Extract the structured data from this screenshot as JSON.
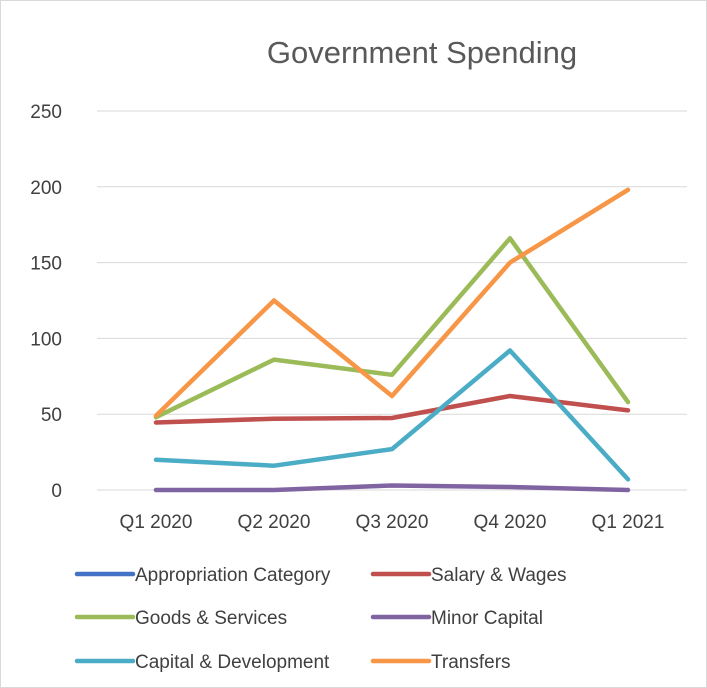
{
  "chart_data": {
    "type": "line",
    "title": "Government Spending",
    "xlabel": "",
    "ylabel": "",
    "categories": [
      "Q1 2020",
      "Q2 2020",
      "Q3 2020",
      "Q4 2020",
      "Q1 2021"
    ],
    "ylim": [
      0,
      250
    ],
    "yticks": [
      0,
      50,
      100,
      150,
      200,
      250
    ],
    "grid": true,
    "legend_position": "bottom",
    "series": [
      {
        "name": "Appropriation Category",
        "color": "#4472c4",
        "values": [
          null,
          null,
          null,
          null,
          null
        ]
      },
      {
        "name": "Salary & Wages",
        "color": "#c0504d",
        "values": [
          44.5,
          47,
          47.5,
          62,
          52.5
        ]
      },
      {
        "name": "Goods & Services",
        "color": "#9bbb59",
        "values": [
          48,
          86,
          76,
          166,
          58
        ]
      },
      {
        "name": "Minor Capital",
        "color": "#8064a2",
        "values": [
          0,
          0,
          3,
          2,
          0
        ]
      },
      {
        "name": "Capital & Development",
        "color": "#4bacc6",
        "values": [
          20,
          16,
          27,
          92,
          7
        ]
      },
      {
        "name": "Transfers",
        "color": "#f79646",
        "values": [
          49,
          125,
          62,
          150,
          198
        ]
      }
    ]
  }
}
